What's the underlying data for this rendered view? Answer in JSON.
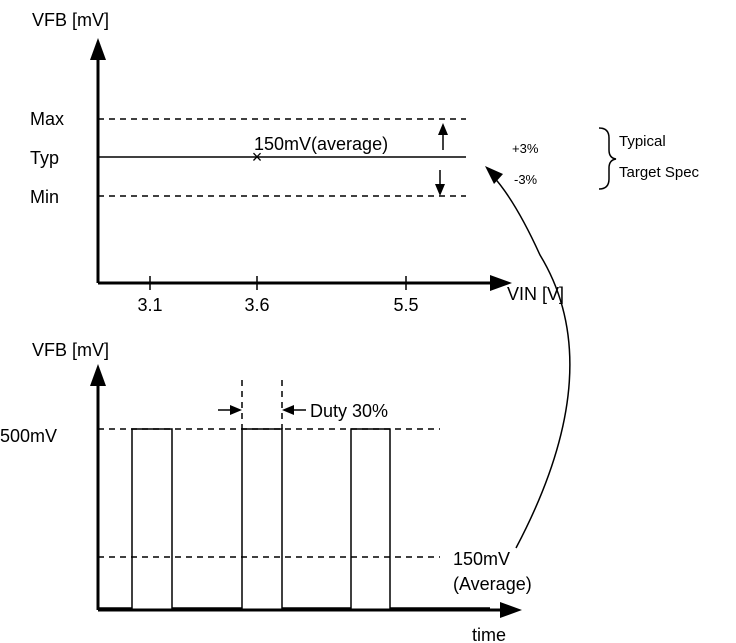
{
  "top_chart": {
    "y_axis_label": "VFB [mV]",
    "x_axis_label": "VIN [V]",
    "level_labels": {
      "max": "Max",
      "typ": "Typ",
      "min": "Min"
    },
    "x_ticks": [
      "3.1",
      "3.6",
      "5.5"
    ],
    "marker_symbol": "×",
    "average_label": "150mV(average)",
    "plus_label": "+3%",
    "minus_label": "-3%",
    "spec_line1": "Typical",
    "spec_line2": "Target Spec"
  },
  "bottom_chart": {
    "y_axis_label": "VFB [mV]",
    "x_axis_label": "time",
    "high_level_label": "500mV",
    "duty_label": "Duty 30%",
    "average_line1": "150mV",
    "average_line2": "(Average)"
  }
}
